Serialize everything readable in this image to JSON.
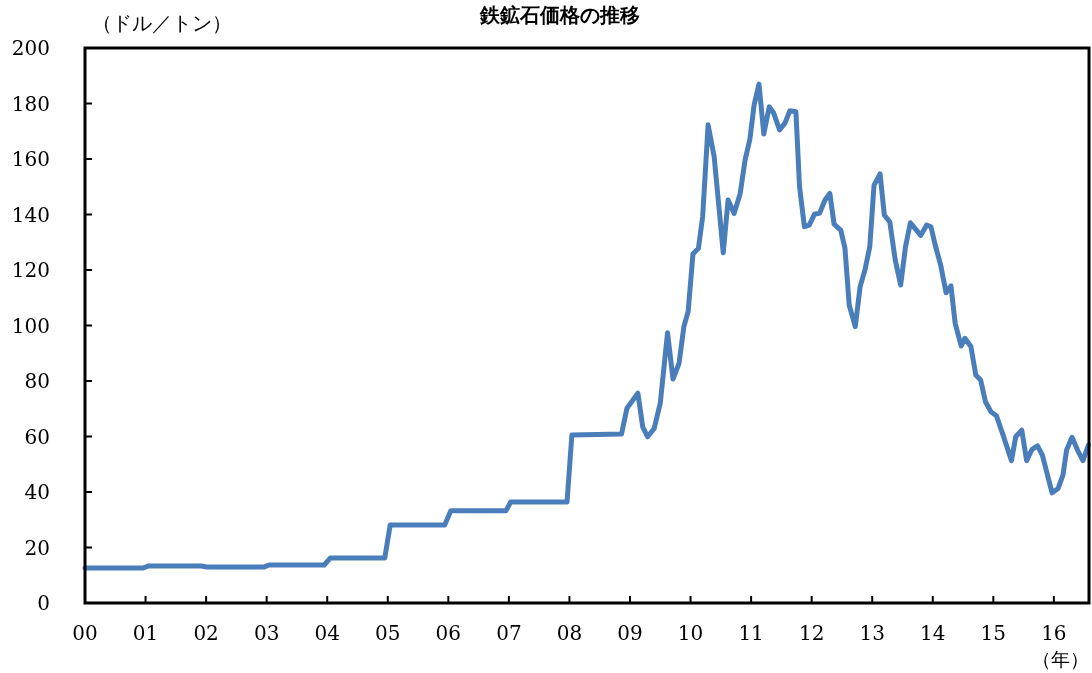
{
  "chart_data": {
    "type": "line",
    "title": "鉄鉱石価格の推移",
    "ylabel": "（ドル／トン）",
    "xlabel": "（年）",
    "x": [
      2000,
      2000.96,
      2001.04,
      2001.92,
      2002.01,
      2002.96,
      2003.04,
      2003.95,
      2004.05,
      2004.95,
      2005.04,
      2005.94,
      2006.04,
      2006.95,
      2007.03,
      2007.96,
      2008.04,
      2008.86,
      2008.95,
      2009.13,
      2009.21,
      2009.29,
      2009.4,
      2009.5,
      2009.62,
      2009.71,
      2009.81,
      2009.89,
      2009.96,
      2010.04,
      2010.13,
      2010.2,
      2010.29,
      2010.39,
      2010.54,
      2010.62,
      2010.72,
      2010.82,
      2010.9,
      2010.98,
      2011.05,
      2011.13,
      2011.21,
      2011.3,
      2011.37,
      2011.47,
      2011.56,
      2011.64,
      2011.74,
      2011.8,
      2011.88,
      2011.96,
      2012.05,
      2012.13,
      2012.22,
      2012.3,
      2012.37,
      2012.48,
      2012.55,
      2012.62,
      2012.72,
      2012.8,
      2012.88,
      2012.96,
      2013.03,
      2013.13,
      2013.2,
      2013.29,
      2013.38,
      2013.47,
      2013.55,
      2013.63,
      2013.73,
      2013.8,
      2013.9,
      2013.97,
      2014.04,
      2014.13,
      2014.22,
      2014.3,
      2014.37,
      2014.47,
      2014.53,
      2014.63,
      2014.71,
      2014.79,
      2014.87,
      2014.96,
      2015.05,
      2015.15,
      2015.3,
      2015.37,
      2015.47,
      2015.55,
      2015.64,
      2015.73,
      2015.81,
      2015.97,
      2016.07,
      2016.15,
      2016.21,
      2016.3,
      2016.39,
      2016.48,
      2016.57
    ],
    "series": [
      {
        "color": "#4a7ebb",
        "values": [
          12.6,
          12.6,
          13.3,
          13.3,
          13,
          13,
          13.7,
          13.7,
          16.2,
          16.2,
          28.1,
          28.1,
          33.2,
          33.2,
          36.4,
          36.4,
          60.5,
          60.9,
          70.2,
          75.6,
          63.5,
          59.9,
          62.9,
          72,
          97.4,
          80.7,
          86.4,
          99.6,
          105,
          125.8,
          127.8,
          139.2,
          172.3,
          160.8,
          126.2,
          145.2,
          140.4,
          147.6,
          159.6,
          167.1,
          179.5,
          187,
          169,
          178.8,
          176.7,
          170.5,
          172.9,
          177.4,
          177,
          150,
          135.6,
          136.2,
          140.2,
          140.4,
          145.2,
          147.6,
          136.5,
          134.4,
          127.8,
          107.4,
          99.6,
          114,
          120,
          128.4,
          150.6,
          154.6,
          139.8,
          137.4,
          123.6,
          114.6,
          128.4,
          137,
          134.4,
          132.4,
          136.2,
          135.6,
          129,
          121.8,
          111.8,
          114.3,
          100.8,
          92.6,
          95.4,
          92.4,
          82.2,
          80.4,
          72.5,
          68.9,
          67.5,
          61.2,
          51.3,
          59.9,
          62.3,
          51.3,
          55.4,
          56.6,
          53.3,
          39.7,
          41.3,
          46.1,
          55.1,
          59.7,
          55.1,
          51.3,
          56.9
        ]
      }
    ],
    "xlim": [
      2000,
      2016.58
    ],
    "xticks": [
      {
        "value": 2000,
        "label": "00"
      },
      {
        "value": 2001,
        "label": "01"
      },
      {
        "value": 2002,
        "label": "02"
      },
      {
        "value": 2003,
        "label": "03"
      },
      {
        "value": 2004,
        "label": "04"
      },
      {
        "value": 2005,
        "label": "05"
      },
      {
        "value": 2006,
        "label": "06"
      },
      {
        "value": 2007,
        "label": "07"
      },
      {
        "value": 2008,
        "label": "08"
      },
      {
        "value": 2009,
        "label": "09"
      },
      {
        "value": 2010,
        "label": "10"
      },
      {
        "value": 2011,
        "label": "11"
      },
      {
        "value": 2012,
        "label": "12"
      },
      {
        "value": 2013,
        "label": "13"
      },
      {
        "value": 2014,
        "label": "14"
      },
      {
        "value": 2015,
        "label": "15"
      },
      {
        "value": 2016,
        "label": "16"
      }
    ],
    "ylim": [
      0,
      200
    ],
    "yticks": [
      0,
      20,
      40,
      60,
      80,
      100,
      120,
      140,
      160,
      180,
      200
    ],
    "grid": false
  }
}
